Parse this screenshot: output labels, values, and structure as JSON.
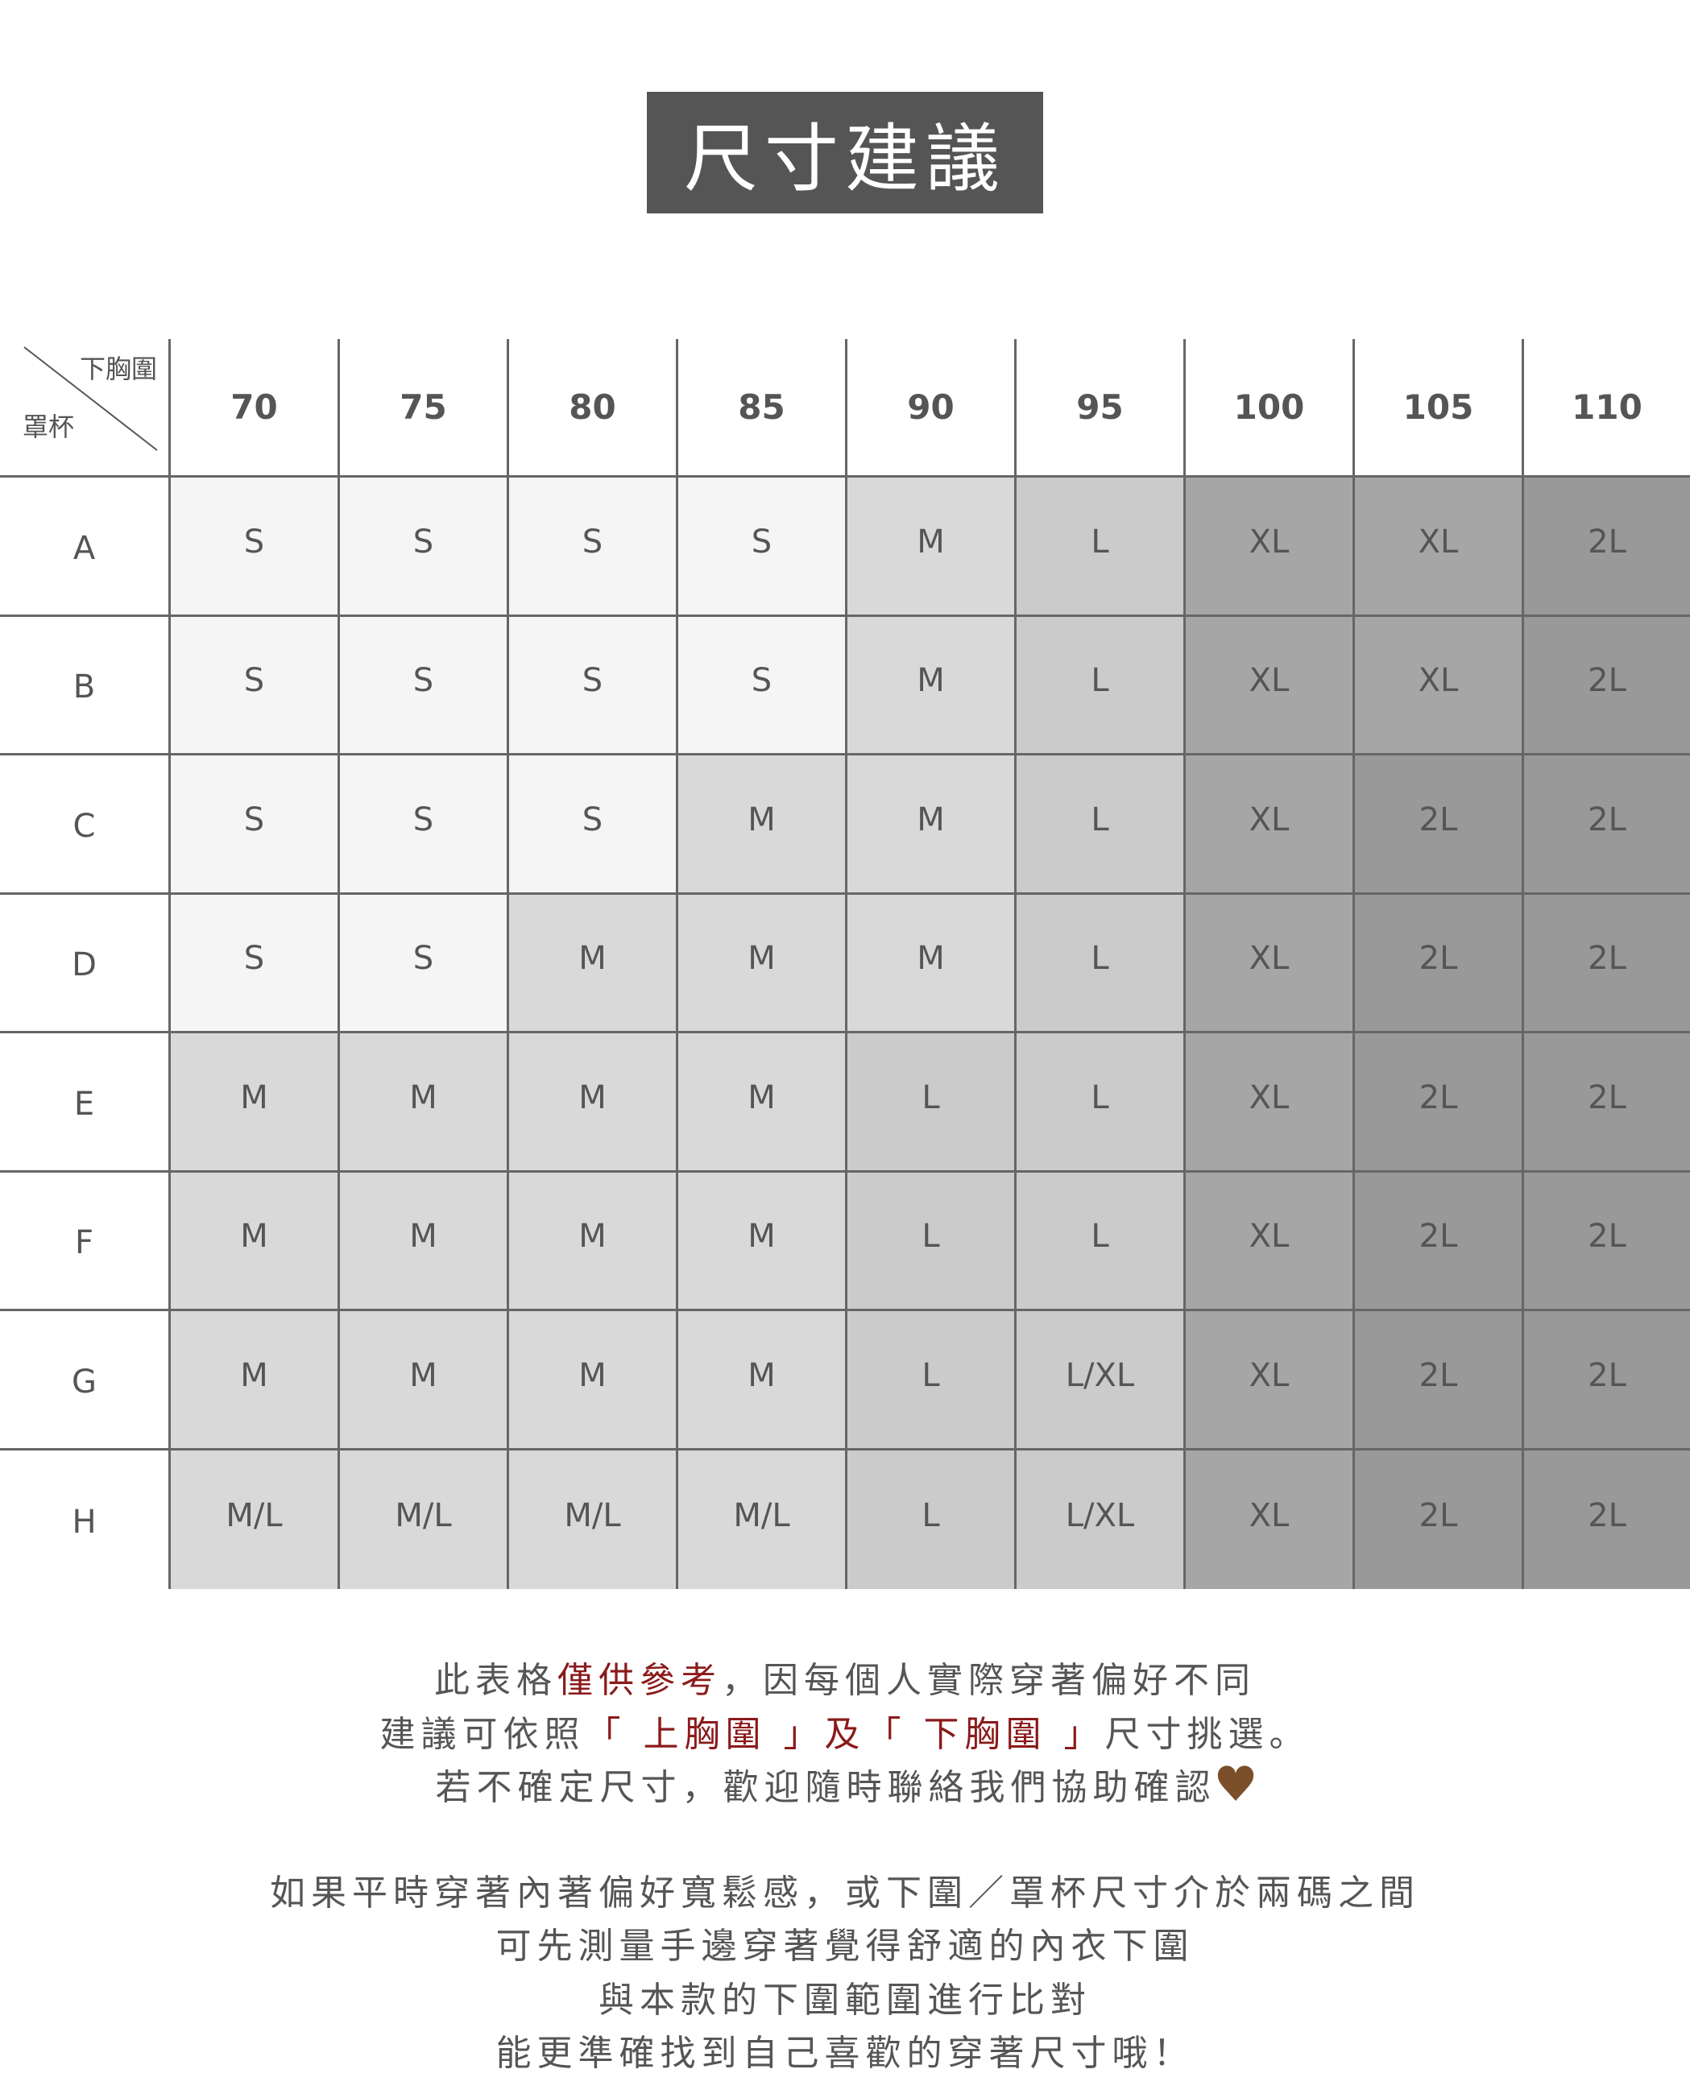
{
  "title": "尺寸建議",
  "table": {
    "corner_top": "下胸圍",
    "corner_bottom": "罩杯",
    "columns": [
      "70",
      "75",
      "80",
      "85",
      "90",
      "95",
      "100",
      "105",
      "110"
    ],
    "rows": [
      {
        "cup": "A",
        "sizes": [
          "S",
          "S",
          "S",
          "S",
          "M",
          "L",
          "XL",
          "XL",
          "2L"
        ]
      },
      {
        "cup": "B",
        "sizes": [
          "S",
          "S",
          "S",
          "S",
          "M",
          "L",
          "XL",
          "XL",
          "2L"
        ]
      },
      {
        "cup": "C",
        "sizes": [
          "S",
          "S",
          "S",
          "M",
          "M",
          "L",
          "XL",
          "2L",
          "2L"
        ]
      },
      {
        "cup": "D",
        "sizes": [
          "S",
          "S",
          "M",
          "M",
          "M",
          "L",
          "XL",
          "2L",
          "2L"
        ]
      },
      {
        "cup": "E",
        "sizes": [
          "M",
          "M",
          "M",
          "M",
          "L",
          "L",
          "XL",
          "2L",
          "2L"
        ]
      },
      {
        "cup": "F",
        "sizes": [
          "M",
          "M",
          "M",
          "M",
          "L",
          "L",
          "XL",
          "2L",
          "2L"
        ]
      },
      {
        "cup": "G",
        "sizes": [
          "M",
          "M",
          "M",
          "M",
          "L",
          "L/XL",
          "XL",
          "2L",
          "2L"
        ]
      },
      {
        "cup": "H",
        "sizes": [
          "M/L",
          "M/L",
          "M/L",
          "M/L",
          "L",
          "L/XL",
          "XL",
          "2L",
          "2L"
        ]
      }
    ],
    "size_colors": {
      "S": "#f5f5f5",
      "M": "#d9d9d9",
      "M/L": "#d9d9d9",
      "L": "#cbcbcb",
      "L/XL": "#cbcbcb",
      "XL": "#a6a6a6",
      "2L": "#999999"
    }
  },
  "notes": {
    "line1": {
      "a": "此表格",
      "b": "僅供參考",
      "c": "，因每個人實際穿著偏好不同"
    },
    "line2": {
      "a": "建議可依照",
      "b": "「 上胸圍 」",
      "c": "及",
      "d": "「 下胸圍 」",
      "e": "尺寸挑選。"
    },
    "line3": "若不確定尺寸，歡迎隨時聯絡我們協助確認",
    "heart_icon": "brown-heart",
    "line4": "如果平時穿著內著偏好寬鬆感，或下圍／罩杯尺寸介於兩碼之間",
    "line5": "可先測量手邊穿著覺得舒適的內衣下圍",
    "line6": "與本款的下圍範圍進行比對",
    "line7": "能更準確找到自己喜歡的穿著尺寸哦！"
  },
  "colors": {
    "accent_red": "#8b1a1a",
    "text": "#555555",
    "title_bg": "#555555",
    "heart": "#7a4f2a"
  }
}
